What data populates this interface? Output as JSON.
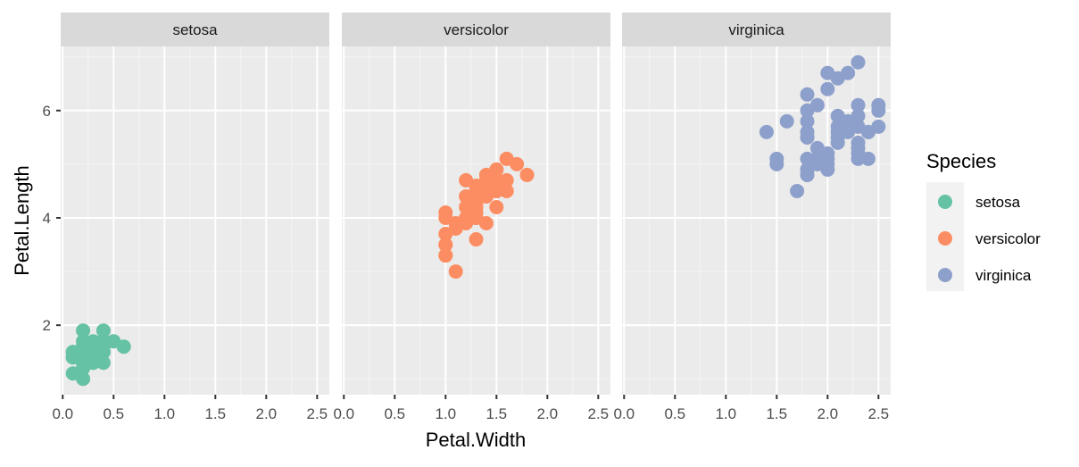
{
  "chart_data": {
    "type": "scatter",
    "title": "",
    "xlabel": "Petal.Width",
    "ylabel": "Petal.Length",
    "xlim": [
      -0.02,
      2.62
    ],
    "ylim": [
      0.705,
      7.195
    ],
    "x_ticks": [
      0.0,
      0.5,
      1.0,
      1.5,
      2.0,
      2.5
    ],
    "x_tick_labels": [
      "0.0",
      "0.5",
      "1.0",
      "1.5",
      "2.0",
      "2.5"
    ],
    "y_ticks": [
      2,
      4,
      6
    ],
    "y_tick_labels": [
      "2",
      "4",
      "6"
    ],
    "grid": true,
    "facet_by": "Species",
    "legend": {
      "title": "Species",
      "placement": "right"
    },
    "series": [
      {
        "name": "setosa",
        "color": "#66C2A5",
        "x": [
          0.2,
          0.2,
          0.2,
          0.2,
          0.2,
          0.4,
          0.3,
          0.2,
          0.2,
          0.1,
          0.2,
          0.2,
          0.1,
          0.1,
          0.2,
          0.4,
          0.4,
          0.3,
          0.3,
          0.3,
          0.2,
          0.4,
          0.2,
          0.5,
          0.2,
          0.2,
          0.4,
          0.2,
          0.2,
          0.2,
          0.2,
          0.4,
          0.1,
          0.2,
          0.2,
          0.2,
          0.2,
          0.1,
          0.2,
          0.2,
          0.3,
          0.3,
          0.2,
          0.6,
          0.4,
          0.3,
          0.2,
          0.2,
          0.2,
          0.2
        ],
        "y": [
          1.4,
          1.4,
          1.3,
          1.5,
          1.4,
          1.7,
          1.4,
          1.5,
          1.4,
          1.5,
          1.5,
          1.6,
          1.4,
          1.1,
          1.2,
          1.5,
          1.3,
          1.4,
          1.7,
          1.5,
          1.7,
          1.5,
          1.0,
          1.7,
          1.9,
          1.6,
          1.6,
          1.5,
          1.4,
          1.6,
          1.6,
          1.5,
          1.5,
          1.4,
          1.5,
          1.2,
          1.3,
          1.4,
          1.3,
          1.5,
          1.3,
          1.3,
          1.3,
          1.6,
          1.9,
          1.4,
          1.6,
          1.4,
          1.5,
          1.4
        ]
      },
      {
        "name": "versicolor",
        "color": "#FC8D62",
        "x": [
          1.4,
          1.5,
          1.5,
          1.3,
          1.5,
          1.3,
          1.6,
          1.0,
          1.3,
          1.4,
          1.0,
          1.5,
          1.0,
          1.4,
          1.3,
          1.4,
          1.5,
          1.0,
          1.5,
          1.1,
          1.8,
          1.3,
          1.5,
          1.2,
          1.3,
          1.4,
          1.4,
          1.7,
          1.5,
          1.0,
          1.1,
          1.0,
          1.2,
          1.6,
          1.5,
          1.6,
          1.5,
          1.3,
          1.3,
          1.3,
          1.2,
          1.4,
          1.2,
          1.0,
          1.3,
          1.2,
          1.3,
          1.3,
          1.1,
          1.3
        ],
        "y": [
          4.7,
          4.5,
          4.9,
          4.0,
          4.6,
          4.5,
          4.7,
          3.3,
          4.6,
          3.9,
          3.5,
          4.2,
          4.0,
          4.7,
          3.6,
          4.4,
          4.5,
          4.1,
          4.5,
          3.9,
          4.8,
          4.0,
          4.9,
          4.7,
          4.3,
          4.4,
          4.8,
          5.0,
          4.5,
          3.5,
          3.8,
          3.7,
          3.9,
          5.1,
          4.5,
          4.5,
          4.7,
          4.4,
          4.1,
          4.0,
          4.4,
          4.6,
          4.0,
          3.3,
          4.2,
          4.2,
          4.2,
          4.3,
          3.0,
          4.1
        ]
      },
      {
        "name": "virginica",
        "color": "#8DA0CB",
        "x": [
          2.5,
          1.9,
          2.1,
          1.8,
          2.2,
          2.1,
          1.7,
          1.8,
          1.8,
          2.5,
          2.0,
          1.9,
          2.1,
          2.0,
          2.4,
          2.3,
          1.8,
          2.2,
          2.3,
          1.5,
          2.3,
          2.0,
          2.0,
          1.8,
          2.1,
          1.8,
          1.8,
          1.8,
          2.1,
          1.6,
          1.9,
          2.0,
          2.2,
          1.5,
          1.4,
          2.3,
          2.4,
          1.8,
          1.8,
          2.1,
          2.4,
          2.3,
          1.9,
          2.3,
          2.5,
          2.3,
          1.9,
          2.0,
          2.3,
          1.8
        ],
        "y": [
          6.0,
          5.1,
          5.9,
          5.6,
          5.8,
          6.6,
          4.5,
          6.3,
          5.8,
          6.1,
          5.1,
          5.3,
          5.5,
          5.0,
          5.1,
          5.3,
          5.5,
          6.7,
          6.9,
          5.0,
          5.7,
          4.9,
          6.7,
          4.9,
          5.7,
          6.0,
          4.8,
          4.9,
          5.6,
          5.8,
          6.1,
          6.4,
          5.6,
          5.1,
          5.6,
          6.1,
          5.6,
          5.5,
          4.8,
          5.4,
          5.6,
          5.1,
          5.1,
          5.9,
          5.7,
          5.2,
          5.0,
          5.2,
          5.4,
          5.1
        ]
      }
    ]
  }
}
